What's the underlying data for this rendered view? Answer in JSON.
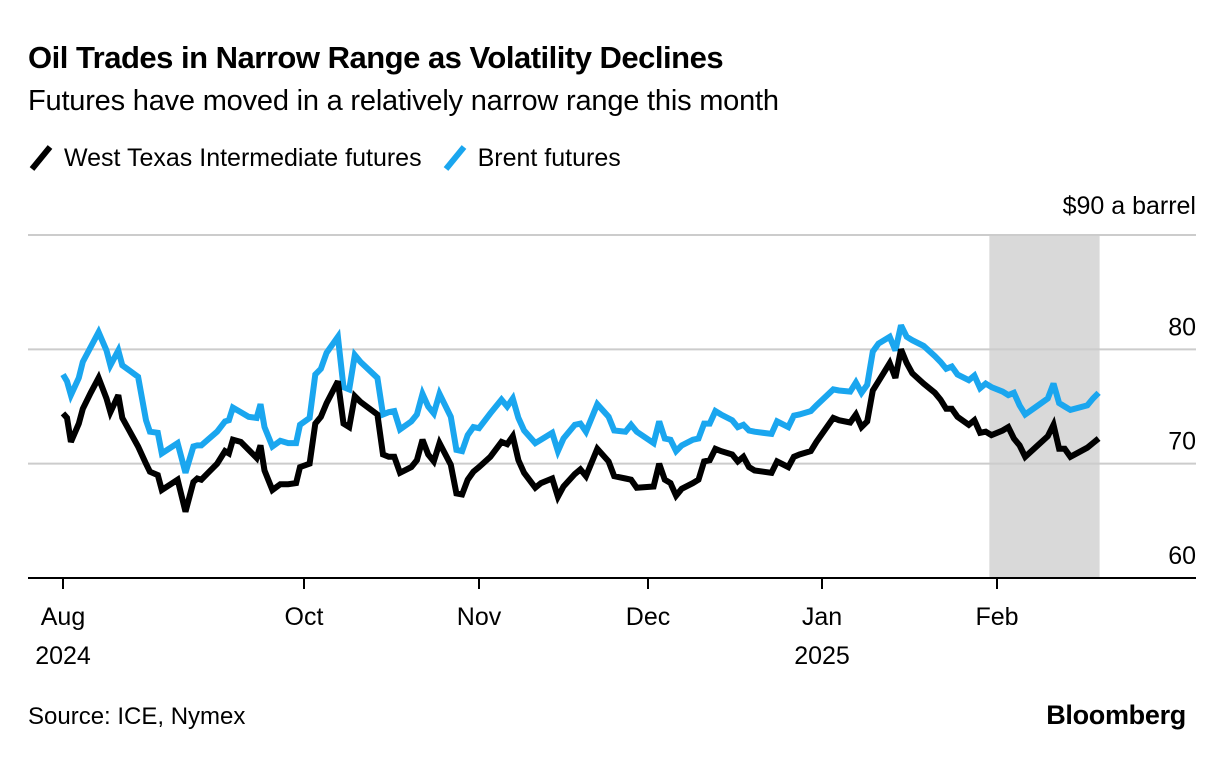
{
  "header": {
    "title": "Oil Trades in Narrow Range as Volatility Declines",
    "subtitle": "Futures have moved in a relatively narrow range this month"
  },
  "legend": [
    {
      "label": "West Texas Intermediate futures",
      "color": "#000000",
      "icon": "diagonal-line-icon"
    },
    {
      "label": "Brent futures",
      "color": "#1aa6ef",
      "icon": "diagonal-line-icon"
    }
  ],
  "footer": {
    "source": "Source: ICE, Nymex",
    "brand": "Bloomberg"
  },
  "chart_data": {
    "type": "line",
    "title": "Oil Trades in Narrow Range as Volatility Declines",
    "subtitle": "Futures have moved in a relatively narrow range this month",
    "xlabel": "",
    "ylabel": "$ a barrel",
    "y_unit_label": "$90 a barrel",
    "ylim": [
      60,
      90
    ],
    "y_ticks": [
      {
        "value": 90,
        "label": "$90 a barrel"
      },
      {
        "value": 80,
        "label": "80"
      },
      {
        "value": 70,
        "label": "70"
      },
      {
        "value": 60,
        "label": "60"
      }
    ],
    "x_ticks": [
      {
        "date": "2024-08-01",
        "label": "Aug",
        "sublabel": "2024"
      },
      {
        "date": "2024-10-01",
        "label": "Oct",
        "sublabel": ""
      },
      {
        "date": "2024-11-01",
        "label": "Nov",
        "sublabel": ""
      },
      {
        "date": "2024-12-01",
        "label": "Dec",
        "sublabel": ""
      },
      {
        "date": "2025-01-01",
        "label": "Jan",
        "sublabel": "2025"
      },
      {
        "date": "2025-02-01",
        "label": "Feb",
        "sublabel": ""
      }
    ],
    "grid": true,
    "legend_position": "top-left",
    "highlight_band": {
      "start": "2025-01-31",
      "end": "2025-02-19",
      "color": "#d9d9d9",
      "label": "this month"
    },
    "x": [
      "2024-08-01",
      "2024-08-02",
      "2024-08-03",
      "2024-08-05",
      "2024-08-06",
      "2024-08-08",
      "2024-08-10",
      "2024-08-12",
      "2024-08-13",
      "2024-08-15",
      "2024-08-16",
      "2024-08-20",
      "2024-08-22",
      "2024-08-23",
      "2024-08-25",
      "2024-08-26",
      "2024-08-30",
      "2024-09-01",
      "2024-09-03",
      "2024-09-04",
      "2024-09-05",
      "2024-09-07",
      "2024-09-09",
      "2024-09-11",
      "2024-09-12",
      "2024-09-13",
      "2024-09-15",
      "2024-09-17",
      "2024-09-19",
      "2024-09-20",
      "2024-09-21",
      "2024-09-23",
      "2024-09-25",
      "2024-09-27",
      "2024-09-29",
      "2024-09-30",
      "2024-10-02",
      "2024-10-03",
      "2024-10-04",
      "2024-10-05",
      "2024-10-07",
      "2024-10-08",
      "2024-10-09",
      "2024-10-10",
      "2024-10-11",
      "2024-10-14",
      "2024-10-15",
      "2024-10-16",
      "2024-10-17",
      "2024-10-18",
      "2024-10-20",
      "2024-10-21",
      "2024-10-22",
      "2024-10-23",
      "2024-10-24",
      "2024-10-25",
      "2024-10-27",
      "2024-10-28",
      "2024-10-29",
      "2024-10-30",
      "2024-10-31",
      "2024-11-01",
      "2024-11-03",
      "2024-11-05",
      "2024-11-06",
      "2024-11-07",
      "2024-11-08",
      "2024-11-09",
      "2024-11-11",
      "2024-11-12",
      "2024-11-14",
      "2024-11-15",
      "2024-11-16",
      "2024-11-18",
      "2024-11-19",
      "2024-11-20",
      "2024-11-22",
      "2024-11-24",
      "2024-11-25",
      "2024-11-27",
      "2024-11-28",
      "2024-11-29",
      "2024-12-02",
      "2024-12-03",
      "2024-12-04",
      "2024-12-05",
      "2024-12-06",
      "2024-12-07",
      "2024-12-09",
      "2024-12-10",
      "2024-12-11",
      "2024-12-12",
      "2024-12-13",
      "2024-12-14",
      "2024-12-16",
      "2024-12-17",
      "2024-12-18",
      "2024-12-19",
      "2024-12-20",
      "2024-12-23",
      "2024-12-24",
      "2024-12-26",
      "2024-12-27",
      "2024-12-28",
      "2024-12-30",
      "2024-12-31",
      "2025-01-03",
      "2025-01-04",
      "2025-01-06",
      "2025-01-07",
      "2025-01-08",
      "2025-01-09",
      "2025-01-10",
      "2025-01-11",
      "2025-01-13",
      "2025-01-14",
      "2025-01-15",
      "2025-01-16",
      "2025-01-17",
      "2025-01-19",
      "2025-01-21",
      "2025-01-22",
      "2025-01-23",
      "2025-01-24",
      "2025-01-25",
      "2025-01-27",
      "2025-01-28",
      "2025-01-29",
      "2025-01-30",
      "2025-01-31",
      "2025-02-02",
      "2025-02-03",
      "2025-02-04",
      "2025-02-05",
      "2025-02-06",
      "2025-02-08",
      "2025-02-10",
      "2025-02-11",
      "2025-02-12",
      "2025-02-13",
      "2025-02-14",
      "2025-02-17",
      "2025-02-18",
      "2025-02-19"
    ],
    "series": [
      {
        "name": "West Texas Intermediate futures",
        "color": "#000000",
        "values": [
          74.4,
          74.0,
          71.9,
          73.5,
          74.8,
          76.2,
          77.5,
          75.7,
          74.5,
          76.0,
          74.0,
          71.5,
          70.0,
          69.3,
          69.0,
          67.7,
          68.6,
          65.8,
          68.4,
          68.7,
          68.6,
          69.3,
          70.0,
          71.1,
          70.9,
          72.1,
          71.9,
          71.2,
          70.5,
          71.6,
          69.4,
          67.7,
          68.2,
          68.2,
          68.3,
          69.7,
          70.0,
          73.5,
          74.1,
          75.3,
          77.2,
          73.5,
          73.2,
          75.9,
          75.4,
          74.3,
          70.8,
          70.6,
          70.6,
          69.2,
          69.7,
          70.3,
          72.1,
          70.8,
          70.2,
          71.8,
          69.9,
          67.4,
          67.3,
          68.6,
          69.3,
          69.7,
          70.6,
          71.9,
          71.7,
          72.4,
          70.3,
          69.2,
          67.9,
          68.3,
          68.7,
          67.1,
          68.0,
          69.1,
          69.5,
          68.9,
          71.3,
          70.2,
          68.9,
          68.7,
          68.6,
          67.9,
          68.0,
          70.0,
          68.6,
          68.3,
          67.2,
          67.8,
          68.3,
          68.6,
          70.2,
          70.3,
          71.3,
          71.1,
          70.8,
          70.2,
          70.6,
          69.7,
          69.4,
          69.2,
          70.2,
          69.7,
          70.6,
          70.8,
          71.1,
          71.9,
          74.0,
          73.8,
          73.6,
          74.3,
          73.2,
          73.7,
          76.4,
          77.2,
          78.8,
          77.5,
          80.0,
          78.8,
          77.9,
          77.0,
          76.2,
          75.6,
          74.8,
          74.8,
          74.1,
          73.4,
          73.8,
          72.7,
          72.8,
          72.5,
          72.9,
          73.2,
          72.2,
          71.6,
          70.6,
          71.5,
          72.4,
          73.4,
          71.3,
          71.3,
          70.6,
          71.4,
          71.8,
          72.2
        ]
      },
      {
        "name": "Brent futures",
        "color": "#1aa6ef",
        "values": [
          77.8,
          77.2,
          76.0,
          77.5,
          78.9,
          80.2,
          81.5,
          79.9,
          78.6,
          79.9,
          78.6,
          77.6,
          73.8,
          72.8,
          72.7,
          70.9,
          71.8,
          69.2,
          71.5,
          71.6,
          71.6,
          72.2,
          72.8,
          73.7,
          73.8,
          74.9,
          74.5,
          74.1,
          74.0,
          75.2,
          73.2,
          71.5,
          72.0,
          71.8,
          71.8,
          73.4,
          74.0,
          77.8,
          78.3,
          79.7,
          81.1,
          76.7,
          76.5,
          79.5,
          78.9,
          77.5,
          74.3,
          74.5,
          74.6,
          73.0,
          73.7,
          74.3,
          76.1,
          75.0,
          74.4,
          76.1,
          74.1,
          71.2,
          71.1,
          72.5,
          73.2,
          73.1,
          74.4,
          75.6,
          75.0,
          75.7,
          74.0,
          72.9,
          71.8,
          72.1,
          72.7,
          71.1,
          72.2,
          73.4,
          73.5,
          72.8,
          75.2,
          74.1,
          72.9,
          72.8,
          73.4,
          72.8,
          71.8,
          73.7,
          72.2,
          72.1,
          71.1,
          71.6,
          72.1,
          72.2,
          73.5,
          73.5,
          74.6,
          74.3,
          73.8,
          73.2,
          73.4,
          72.9,
          72.8,
          72.6,
          73.7,
          73.2,
          74.2,
          74.3,
          74.6,
          75.1,
          76.5,
          76.4,
          76.3,
          77.1,
          76.2,
          76.9,
          79.8,
          80.5,
          81.1,
          79.9,
          82.1,
          81.1,
          80.8,
          80.3,
          79.4,
          78.9,
          78.3,
          78.5,
          77.8,
          77.3,
          77.7,
          76.6,
          77.0,
          76.7,
          76.3,
          76.0,
          76.2,
          75.1,
          74.3,
          75.0,
          75.7,
          77.0,
          75.3,
          75.0,
          74.7,
          75.1,
          75.7,
          76.2
        ]
      }
    ]
  }
}
